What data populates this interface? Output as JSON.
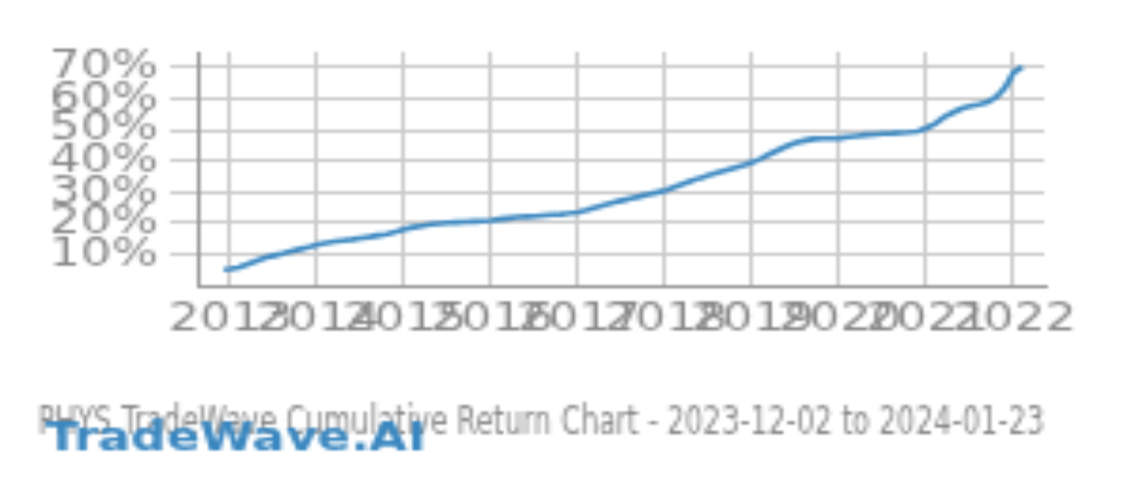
{
  "chart_data": {
    "type": "line",
    "title": "PHYS TradeWave Cumulative Return Chart - 2023-12-02 to 2024-01-23",
    "annotations": [
      "TradeWave.AI"
    ],
    "color": "#3a87c0",
    "x": [
      2012.92,
      2013.0,
      2013.1,
      2013.2,
      2013.3,
      2013.4,
      2013.5,
      2013.6,
      2013.7,
      2013.8,
      2013.9,
      2014.0,
      2014.1,
      2014.2,
      2014.3,
      2014.4,
      2014.5,
      2014.6,
      2014.7,
      2014.8,
      2014.9,
      2015.0,
      2015.1,
      2015.2,
      2015.3,
      2015.4,
      2015.5,
      2015.6,
      2015.7,
      2015.8,
      2015.9,
      2016.0,
      2016.1,
      2016.2,
      2016.3,
      2016.4,
      2016.5,
      2016.6,
      2016.7,
      2016.8,
      2016.9,
      2017.0,
      2017.1,
      2017.2,
      2017.3,
      2017.4,
      2017.5,
      2017.6,
      2017.7,
      2017.8,
      2017.9,
      2018.0,
      2018.1,
      2018.2,
      2018.3,
      2018.4,
      2018.5,
      2018.6,
      2018.7,
      2018.8,
      2018.9,
      2019.0,
      2019.1,
      2019.2,
      2019.3,
      2019.4,
      2019.5,
      2019.6,
      2019.7,
      2019.8,
      2019.9,
      2020.0,
      2020.1,
      2020.2,
      2020.3,
      2020.4,
      2020.5,
      2020.6,
      2020.7,
      2020.8,
      2020.9,
      2021.0,
      2021.1,
      2021.2,
      2021.3,
      2021.4,
      2021.5,
      2021.6,
      2021.7,
      2021.8,
      2021.9,
      2022.0,
      2022.1
    ],
    "values": [
      5.0,
      5.2,
      5.8,
      6.8,
      7.8,
      8.8,
      9.5,
      10.2,
      11.0,
      11.6,
      12.2,
      13.0,
      13.5,
      14.0,
      14.4,
      14.7,
      15.1,
      15.5,
      16.0,
      16.5,
      17.2,
      18.0,
      18.6,
      19.1,
      19.5,
      19.8,
      20.0,
      20.2,
      20.3,
      20.4,
      20.5,
      20.8,
      21.2,
      21.5,
      21.8,
      22.0,
      22.2,
      22.4,
      22.6,
      22.8,
      23.1,
      23.5,
      24.2,
      25.0,
      25.8,
      26.5,
      27.2,
      27.9,
      28.5,
      29.2,
      29.8,
      30.5,
      31.5,
      32.5,
      33.5,
      34.5,
      35.3,
      36.2,
      37.0,
      37.8,
      38.5,
      39.5,
      40.8,
      42.2,
      43.5,
      44.8,
      45.8,
      46.5,
      47.0,
      47.2,
      47.1,
      47.3,
      47.7,
      48.0,
      48.3,
      48.5,
      48.7,
      48.8,
      49.0,
      49.2,
      49.5,
      50.5,
      52.0,
      54.0,
      55.5,
      56.8,
      57.5,
      58.0,
      58.8,
      60.5,
      63.5,
      68.5,
      70.2
    ],
    "xlim": [
      2012.65,
      2022.35
    ],
    "xticks": [
      2013,
      2014,
      2015,
      2016,
      2017,
      2018,
      2019,
      2020,
      2021,
      2022
    ],
    "ylim": [
      0,
      75
    ],
    "yticks": [
      {
        "value": 10,
        "label": "10%"
      },
      {
        "value": 20,
        "label": "20%"
      },
      {
        "value": 30,
        "label": "30%"
      },
      {
        "value": 40,
        "label": "40%"
      },
      {
        "value": 50,
        "label": "50%"
      },
      {
        "value": 60,
        "label": "60%"
      },
      {
        "value": 70,
        "label": "70%"
      }
    ],
    "grid": true
  }
}
